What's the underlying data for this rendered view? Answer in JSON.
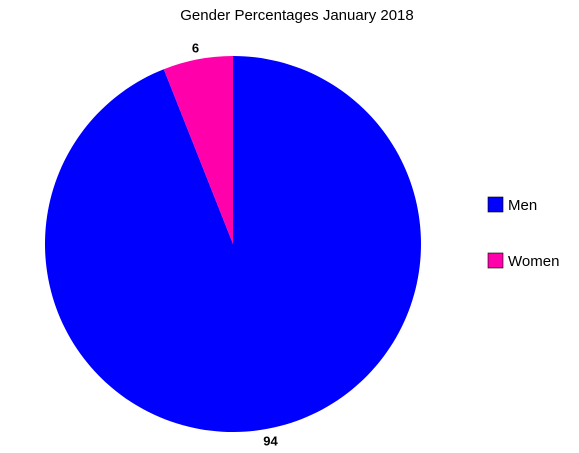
{
  "chart_data": {
    "type": "pie",
    "title": "Gender Percentages January 2018",
    "categories": [
      "Men",
      "Women"
    ],
    "values": [
      94,
      6
    ],
    "colors": [
      "#0000ff",
      "#ff00aa"
    ],
    "legend_position": "right"
  }
}
